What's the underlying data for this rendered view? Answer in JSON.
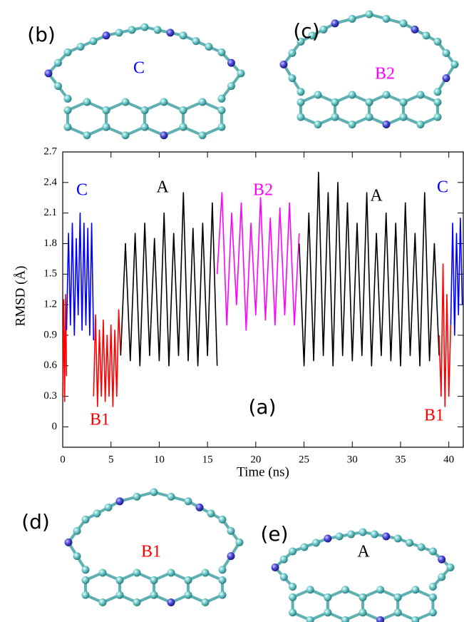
{
  "chart_data": {
    "type": "line",
    "x_label": "Time (ns)",
    "y_label": "RMSD (Å)",
    "panel_label": "(a)",
    "xlim": [
      0,
      41.5
    ],
    "ylim": [
      -0.2,
      2.7
    ],
    "xticks": [
      0,
      5,
      10,
      15,
      20,
      25,
      30,
      35,
      40
    ],
    "yticks": [
      0,
      0.3,
      0.6,
      0.9,
      1.2,
      1.5,
      1.8,
      2.1,
      2.4,
      2.7
    ],
    "series": [
      {
        "color": "#ff0000",
        "x": [
          0,
          0.1,
          0.2,
          0.3,
          0.4
        ],
        "values": [
          0.3,
          1.25,
          0.25,
          1.3,
          0.5
        ]
      },
      {
        "color": "#0000ff",
        "x": [
          0.4,
          0.6,
          0.8,
          1.0,
          1.2,
          1.4,
          1.6,
          1.8,
          2.0,
          2.2,
          2.4,
          2.6,
          2.8,
          3.0,
          3.2
        ],
        "values": [
          0.95,
          1.9,
          1.0,
          2.0,
          0.9,
          1.85,
          1.1,
          2.1,
          0.95,
          2.0,
          1.0,
          1.95,
          0.9,
          2.0,
          0.85
        ]
      },
      {
        "color": "#ff0000",
        "x": [
          3.2,
          3.4,
          3.6,
          3.8,
          4.0,
          4.2,
          4.4,
          4.6,
          4.8,
          5.0,
          5.2,
          5.4,
          5.6,
          5.8,
          6.0
        ],
        "values": [
          0.3,
          1.1,
          0.2,
          0.95,
          0.3,
          1.05,
          0.25,
          0.9,
          0.3,
          1.0,
          0.2,
          0.95,
          0.3,
          1.15,
          0.7
        ]
      },
      {
        "color": "#000000",
        "x": [
          6,
          6.5,
          7,
          7.5,
          8,
          8.5,
          9,
          9.5,
          10,
          10.5,
          11,
          11.5,
          12,
          12.5,
          13,
          13.5,
          14,
          14.5,
          15,
          15.5,
          16
        ],
        "values": [
          0.7,
          1.8,
          0.65,
          1.9,
          0.6,
          2.0,
          0.7,
          1.85,
          0.65,
          2.1,
          0.6,
          1.9,
          0.7,
          2.3,
          0.65,
          1.95,
          0.6,
          2.0,
          0.7,
          2.2,
          0.6
        ]
      },
      {
        "color": "#ff00ff",
        "x": [
          16,
          16.5,
          17,
          17.5,
          18,
          18.5,
          19,
          19.5,
          20,
          20.5,
          21,
          21.5,
          22,
          22.5,
          23,
          23.5,
          24,
          24.5
        ],
        "values": [
          1.5,
          2.3,
          1.0,
          2.1,
          1.2,
          2.2,
          0.95,
          2.0,
          1.1,
          2.25,
          1.05,
          2.05,
          1.0,
          2.15,
          1.1,
          2.2,
          1.0,
          1.9
        ]
      },
      {
        "color": "#000000",
        "x": [
          24.5,
          25,
          25.5,
          26,
          26.5,
          27,
          27.5,
          28,
          28.5,
          29,
          29.5,
          30,
          30.5,
          31,
          31.5,
          32,
          32.5,
          33,
          33.5,
          34,
          34.5,
          35,
          35.5,
          36,
          36.5,
          37,
          37.5,
          38,
          38.5,
          39
        ],
        "values": [
          1.8,
          0.6,
          2.1,
          0.65,
          2.5,
          0.7,
          2.3,
          0.6,
          2.4,
          0.7,
          2.2,
          0.65,
          2.0,
          0.7,
          2.3,
          0.6,
          1.9,
          0.7,
          2.1,
          0.65,
          2.0,
          0.6,
          2.2,
          0.7,
          1.9,
          0.6,
          2.3,
          0.65,
          1.8,
          0.7
        ]
      },
      {
        "color": "#ff0000",
        "x": [
          39,
          39.2,
          39.4,
          39.6,
          39.8,
          40,
          40.2
        ],
        "values": [
          0.9,
          0.3,
          1.6,
          0.2,
          1.3,
          0.3,
          1.0
        ]
      },
      {
        "color": "#0000ff",
        "x": [
          40.2,
          40.4,
          40.6,
          40.8,
          41,
          41.2,
          41.4
        ],
        "values": [
          1.0,
          2.0,
          0.9,
          1.9,
          1.1,
          2.05,
          1.2
        ]
      }
    ],
    "annotations": [
      {
        "text": "C",
        "color": "#0000ff"
      },
      {
        "text": "A",
        "color": "#000000"
      },
      {
        "text": "B2",
        "color": "#ff00ff"
      },
      {
        "text": "A",
        "color": "#000000"
      },
      {
        "text": "C",
        "color": "#0000ff"
      },
      {
        "text": "B1",
        "color": "#ff0000"
      },
      {
        "text": "B1",
        "color": "#ff0000"
      }
    ]
  },
  "panels": [
    {
      "label": "(b)",
      "name": "C",
      "color": "#0000ff"
    },
    {
      "label": "(c)",
      "name": "B2",
      "color": "#ff00ff"
    },
    {
      "label": "(d)",
      "name": "B1",
      "color": "#ff0000"
    },
    {
      "label": "(e)",
      "name": "A",
      "color": "#000000"
    }
  ]
}
